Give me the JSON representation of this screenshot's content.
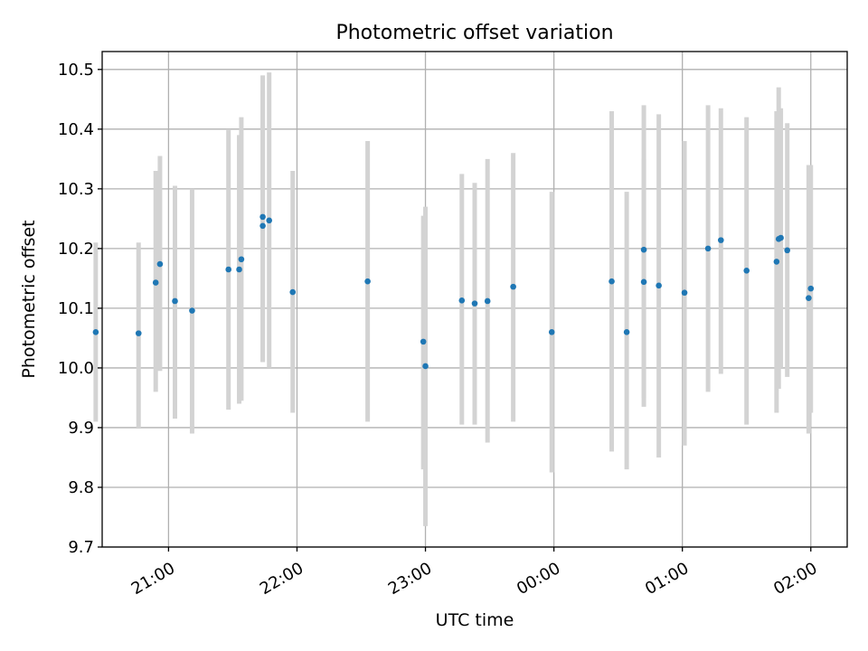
{
  "chart_data": {
    "type": "scatter",
    "title": "Photometric offset variation",
    "xlabel": "UTC time",
    "ylabel": "Photometric offset",
    "xlim": [
      "20:29",
      "02:17"
    ],
    "ylim": [
      9.7,
      10.53
    ],
    "grid": true,
    "x_ticks": [
      "21:00",
      "22:00",
      "23:00",
      "00:00",
      "01:00",
      "02:00"
    ],
    "y_ticks": [
      "9.7",
      "9.8",
      "9.9",
      "10.0",
      "10.1",
      "10.2",
      "10.3",
      "10.4",
      "10.5"
    ],
    "colors": {
      "points": "#1f77b4",
      "errorbars": "#d3d3d3",
      "grid": "#b0b0b0",
      "frame": "#000000"
    },
    "points": [
      {
        "x": "20:26",
        "y": 10.06,
        "ylow": 9.91,
        "yhigh": 10.21
      },
      {
        "x": "20:46",
        "y": 10.058,
        "ylow": 9.9,
        "yhigh": 10.21
      },
      {
        "x": "20:54",
        "y": 10.143,
        "ylow": 9.96,
        "yhigh": 10.33
      },
      {
        "x": "20:56",
        "y": 10.174,
        "ylow": 9.995,
        "yhigh": 10.355
      },
      {
        "x": "21:03",
        "y": 10.112,
        "ylow": 9.915,
        "yhigh": 10.305
      },
      {
        "x": "21:11",
        "y": 10.096,
        "ylow": 9.89,
        "yhigh": 10.3
      },
      {
        "x": "21:28",
        "y": 10.165,
        "ylow": 9.93,
        "yhigh": 10.4
      },
      {
        "x": "21:33",
        "y": 10.165,
        "ylow": 9.94,
        "yhigh": 10.39
      },
      {
        "x": "21:34",
        "y": 10.182,
        "ylow": 9.945,
        "yhigh": 10.42
      },
      {
        "x": "21:44",
        "y": 10.253,
        "ylow": 10.01,
        "yhigh": 10.49
      },
      {
        "x": "21:44",
        "y": 10.238,
        "ylow": 10.01,
        "yhigh": 10.465
      },
      {
        "x": "21:47",
        "y": 10.247,
        "ylow": 10.0,
        "yhigh": 10.495
      },
      {
        "x": "21:58",
        "y": 10.127,
        "ylow": 9.925,
        "yhigh": 10.33
      },
      {
        "x": "22:33",
        "y": 10.145,
        "ylow": 9.91,
        "yhigh": 10.38
      },
      {
        "x": "22:59",
        "y": 10.044,
        "ylow": 9.83,
        "yhigh": 10.255
      },
      {
        "x": "23:00",
        "y": 10.003,
        "ylow": 9.735,
        "yhigh": 10.27
      },
      {
        "x": "23:17",
        "y": 10.113,
        "ylow": 9.905,
        "yhigh": 10.325
      },
      {
        "x": "23:23",
        "y": 10.108,
        "ylow": 9.905,
        "yhigh": 10.31
      },
      {
        "x": "23:29",
        "y": 10.112,
        "ylow": 9.875,
        "yhigh": 10.35
      },
      {
        "x": "23:41",
        "y": 10.136,
        "ylow": 9.91,
        "yhigh": 10.36
      },
      {
        "x": "23:59",
        "y": 10.06,
        "ylow": 9.825,
        "yhigh": 10.295
      },
      {
        "x": "00:27",
        "y": 10.145,
        "ylow": 9.86,
        "yhigh": 10.43
      },
      {
        "x": "00:34",
        "y": 10.06,
        "ylow": 9.83,
        "yhigh": 10.295
      },
      {
        "x": "00:42",
        "y": 10.198,
        "ylow": 9.95,
        "yhigh": 10.44
      },
      {
        "x": "00:42",
        "y": 10.144,
        "ylow": 9.935,
        "yhigh": 10.35
      },
      {
        "x": "00:49",
        "y": 10.138,
        "ylow": 9.85,
        "yhigh": 10.425
      },
      {
        "x": "01:01",
        "y": 10.126,
        "ylow": 9.87,
        "yhigh": 10.38
      },
      {
        "x": "01:12",
        "y": 10.2,
        "ylow": 9.96,
        "yhigh": 10.44
      },
      {
        "x": "01:18",
        "y": 10.214,
        "ylow": 9.99,
        "yhigh": 10.435
      },
      {
        "x": "01:30",
        "y": 10.163,
        "ylow": 9.905,
        "yhigh": 10.42
      },
      {
        "x": "01:44",
        "y": 10.178,
        "ylow": 9.925,
        "yhigh": 10.43
      },
      {
        "x": "01:45",
        "y": 10.216,
        "ylow": 9.965,
        "yhigh": 10.47
      },
      {
        "x": "01:46",
        "y": 10.218,
        "ylow": 10.0,
        "yhigh": 10.435
      },
      {
        "x": "01:49",
        "y": 10.197,
        "ylow": 9.985,
        "yhigh": 10.41
      },
      {
        "x": "01:59",
        "y": 10.117,
        "ylow": 9.89,
        "yhigh": 10.34
      },
      {
        "x": "02:00",
        "y": 10.133,
        "ylow": 9.925,
        "yhigh": 10.34
      }
    ]
  }
}
